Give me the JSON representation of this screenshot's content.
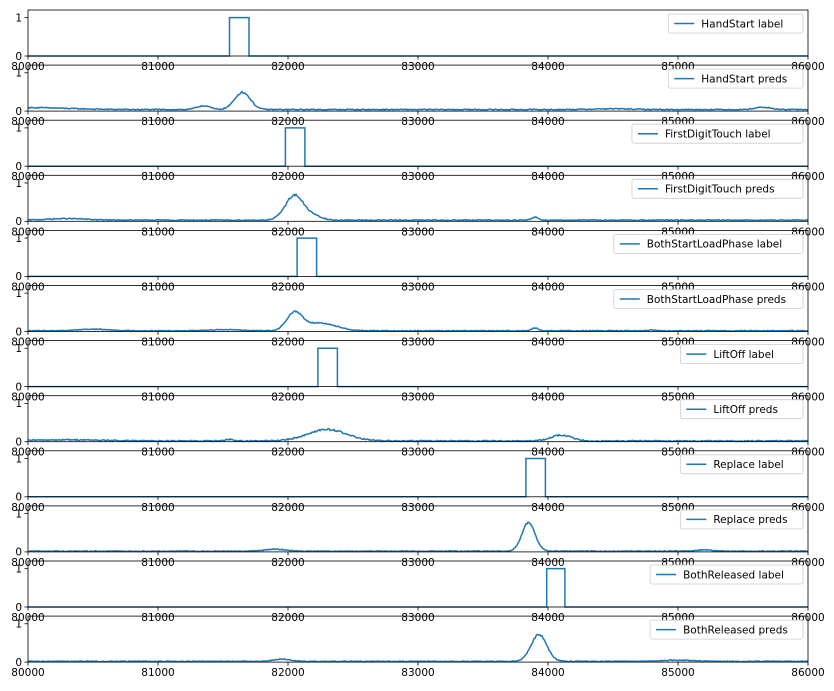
{
  "colors": {
    "series": "#1f77b4",
    "axis": "#000000",
    "background": "#ffffff"
  },
  "chart_data": [
    {
      "type": "line",
      "title": "",
      "xlabel": "",
      "ylabel": "",
      "xlim": [
        80000,
        86000
      ],
      "ylim": [
        0,
        1.2
      ],
      "yticks": [
        0,
        1
      ],
      "xticks": [
        80000,
        81000,
        82000,
        83000,
        84000,
        85000,
        86000
      ],
      "legend": "top-right",
      "grid": false,
      "series": [
        {
          "name": "HandStart label",
          "kind": "pulse",
          "start": 81550,
          "end": 81700,
          "amplitude": 1
        }
      ]
    },
    {
      "type": "line",
      "title": "",
      "xlabel": "",
      "ylabel": "",
      "xlim": [
        80000,
        86000
      ],
      "ylim": [
        0,
        1.2
      ],
      "yticks": [
        0,
        1
      ],
      "xticks": [
        80000,
        81000,
        82000,
        83000,
        84000,
        85000,
        86000
      ],
      "legend": "top-right",
      "grid": false,
      "series": [
        {
          "name": "HandStart preds",
          "kind": "noisy",
          "baseline": 0.04,
          "noise": 0.012,
          "peaks": [
            [
              80000,
              0.05,
              300
            ],
            [
              81350,
              0.1,
              50
            ],
            [
              81650,
              0.45,
              60
            ],
            [
              84500,
              0.02,
              150
            ],
            [
              85650,
              0.06,
              60
            ]
          ]
        }
      ]
    },
    {
      "type": "line",
      "title": "",
      "xlabel": "",
      "ylabel": "",
      "xlim": [
        80000,
        86000
      ],
      "ylim": [
        0,
        1.2
      ],
      "yticks": [
        0,
        1
      ],
      "xticks": [
        80000,
        81000,
        82000,
        83000,
        84000,
        85000,
        86000
      ],
      "legend": "top-right",
      "grid": false,
      "series": [
        {
          "name": "FirstDigitTouch label",
          "kind": "pulse",
          "start": 81980,
          "end": 82130,
          "amplitude": 1
        }
      ]
    },
    {
      "type": "line",
      "title": "",
      "xlabel": "",
      "ylabel": "",
      "xlim": [
        80000,
        86000
      ],
      "ylim": [
        0,
        1.2
      ],
      "yticks": [
        0,
        1
      ],
      "xticks": [
        80000,
        81000,
        82000,
        83000,
        84000,
        85000,
        86000
      ],
      "legend": "top-right",
      "grid": false,
      "series": [
        {
          "name": "FirstDigitTouch preds",
          "kind": "noisy",
          "baseline": 0.03,
          "noise": 0.012,
          "peaks": [
            [
              80300,
              0.04,
              150
            ],
            [
              82050,
              0.65,
              70
            ],
            [
              82200,
              0.1,
              60
            ],
            [
              83900,
              0.08,
              25
            ]
          ]
        }
      ]
    },
    {
      "type": "line",
      "title": "",
      "xlabel": "",
      "ylabel": "",
      "xlim": [
        80000,
        86000
      ],
      "ylim": [
        0,
        1.2
      ],
      "yticks": [
        0,
        1
      ],
      "xticks": [
        80000,
        81000,
        82000,
        83000,
        84000,
        85000,
        86000
      ],
      "legend": "top-right",
      "grid": false,
      "series": [
        {
          "name": "BothStartLoadPhase label",
          "kind": "pulse",
          "start": 82070,
          "end": 82220,
          "amplitude": 1
        }
      ]
    },
    {
      "type": "line",
      "title": "",
      "xlabel": "",
      "ylabel": "",
      "xlim": [
        80000,
        86000
      ],
      "ylim": [
        0,
        1.2
      ],
      "yticks": [
        0,
        1
      ],
      "xticks": [
        80000,
        81000,
        82000,
        83000,
        84000,
        85000,
        86000
      ],
      "legend": "top-right",
      "grid": false,
      "series": [
        {
          "name": "BothStartLoadPhase preds",
          "kind": "noisy",
          "baseline": 0.02,
          "noise": 0.01,
          "peaks": [
            [
              80500,
              0.04,
              120
            ],
            [
              81500,
              0.03,
              120
            ],
            [
              82050,
              0.45,
              60
            ],
            [
              82250,
              0.2,
              120
            ],
            [
              83900,
              0.07,
              25
            ],
            [
              84800,
              0.02,
              30
            ]
          ]
        }
      ]
    },
    {
      "type": "line",
      "title": "",
      "xlabel": "",
      "ylabel": "",
      "xlim": [
        80000,
        86000
      ],
      "ylim": [
        0,
        1.2
      ],
      "yticks": [
        0,
        1
      ],
      "xticks": [
        80000,
        81000,
        82000,
        83000,
        84000,
        85000,
        86000
      ],
      "legend": "top-right",
      "grid": false,
      "series": [
        {
          "name": "LiftOff label",
          "kind": "pulse",
          "start": 82230,
          "end": 82380,
          "amplitude": 1
        }
      ]
    },
    {
      "type": "line",
      "title": "",
      "xlabel": "",
      "ylabel": "",
      "xlim": [
        80000,
        86000
      ],
      "ylim": [
        0,
        1.2
      ],
      "yticks": [
        0,
        1
      ],
      "xticks": [
        80000,
        81000,
        82000,
        83000,
        84000,
        85000,
        86000
      ],
      "legend": "top-right",
      "grid": false,
      "series": [
        {
          "name": "LiftOff preds",
          "kind": "noisy",
          "baseline": 0.02,
          "noise": 0.015,
          "peaks": [
            [
              80300,
              0.03,
              250
            ],
            [
              81550,
              0.04,
              30
            ],
            [
              82300,
              0.3,
              150
            ],
            [
              84100,
              0.15,
              80
            ]
          ]
        }
      ]
    },
    {
      "type": "line",
      "title": "",
      "xlabel": "",
      "ylabel": "",
      "xlim": [
        80000,
        86000
      ],
      "ylim": [
        0,
        1.2
      ],
      "yticks": [
        0,
        1
      ],
      "xticks": [
        80000,
        81000,
        82000,
        83000,
        84000,
        85000,
        86000
      ],
      "legend": "top-right",
      "grid": false,
      "series": [
        {
          "name": "Replace label",
          "kind": "pulse",
          "start": 83830,
          "end": 83980,
          "amplitude": 1
        }
      ]
    },
    {
      "type": "line",
      "title": "",
      "xlabel": "",
      "ylabel": "",
      "xlim": [
        80000,
        86000
      ],
      "ylim": [
        0,
        1.2
      ],
      "yticks": [
        0,
        1
      ],
      "xticks": [
        80000,
        81000,
        82000,
        83000,
        84000,
        85000,
        86000
      ],
      "legend": "top-right",
      "grid": false,
      "series": [
        {
          "name": "Replace preds",
          "kind": "noisy",
          "baseline": 0.02,
          "noise": 0.01,
          "peaks": [
            [
              81900,
              0.05,
              80
            ],
            [
              83850,
              0.75,
              50
            ],
            [
              85200,
              0.03,
              60
            ]
          ]
        }
      ]
    },
    {
      "type": "line",
      "title": "",
      "xlabel": "",
      "ylabel": "",
      "xlim": [
        80000,
        86000
      ],
      "ylim": [
        0,
        1.2
      ],
      "yticks": [
        0,
        1
      ],
      "xticks": [
        80000,
        81000,
        82000,
        83000,
        84000,
        85000,
        86000
      ],
      "legend": "top-right",
      "grid": false,
      "series": [
        {
          "name": "BothReleased label",
          "kind": "pulse",
          "start": 83990,
          "end": 84130,
          "amplitude": 1
        }
      ]
    },
    {
      "type": "line",
      "title": "",
      "xlabel": "",
      "ylabel": "",
      "xlim": [
        80000,
        86000
      ],
      "ylim": [
        0,
        1.2
      ],
      "yticks": [
        0,
        1
      ],
      "xticks": [
        80000,
        81000,
        82000,
        83000,
        84000,
        85000,
        86000
      ],
      "legend": "top-right",
      "grid": false,
      "series": [
        {
          "name": "BothReleased preds",
          "kind": "noisy",
          "baseline": 0.02,
          "noise": 0.01,
          "peaks": [
            [
              81950,
              0.06,
              60
            ],
            [
              83930,
              0.7,
              60
            ],
            [
              85000,
              0.03,
              120
            ]
          ]
        }
      ]
    }
  ]
}
